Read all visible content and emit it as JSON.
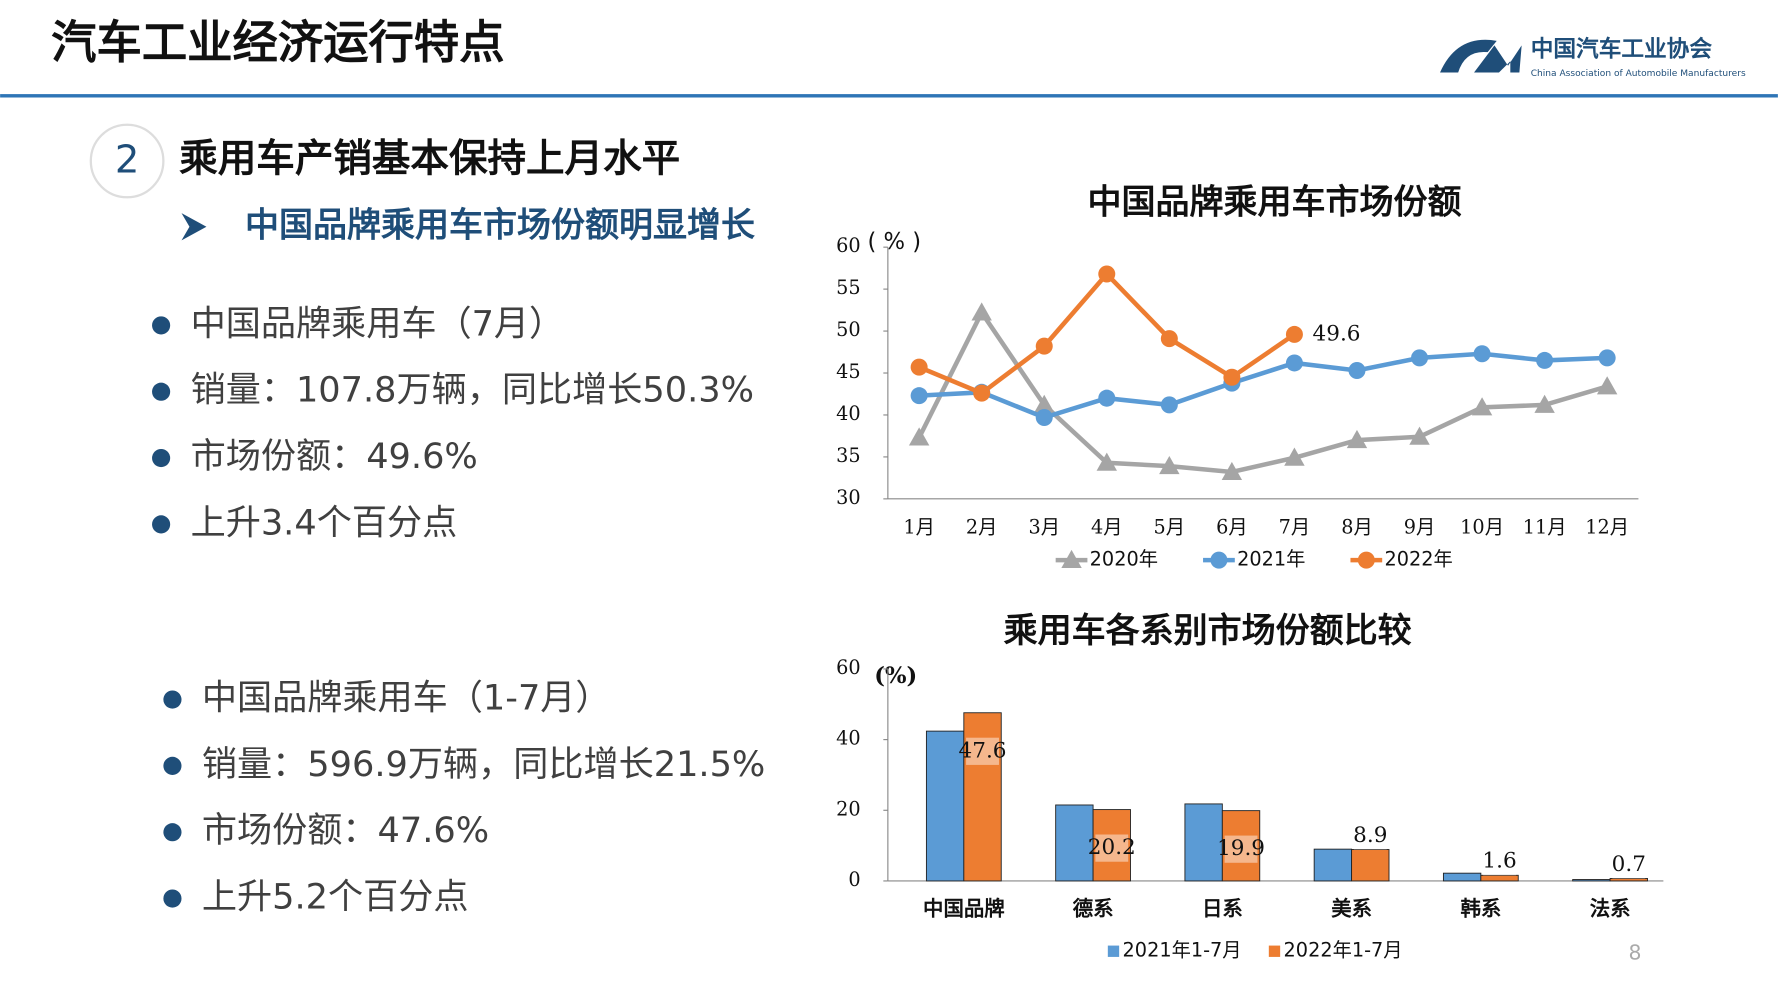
{
  "header": {
    "title": "汽车工业经济运行特点"
  },
  "logo": {
    "name": "中国汽车工业协会",
    "english": "China Association of Automobile Manufacturers"
  },
  "section": {
    "number": "2",
    "title": "乘用车产销基本保持上月水平",
    "subtitle": "中国品牌乘用车市场份额明显增长"
  },
  "bullets1": [
    "中国品牌乘用车（7月）",
    "销量：107.8万辆，同比增长50.3%",
    "市场份额：49.6%",
    "上升3.4个百分点"
  ],
  "bullets2": [
    "中国品牌乘用车（1-7月）",
    "销量：596.9万辆，同比增长21.5%",
    "市场份额：47.6%",
    "上升5.2个百分点"
  ],
  "page_number": "8",
  "chart_data": [
    {
      "type": "line",
      "title": "中国品牌乘用车市场份额",
      "y_label": "( % )",
      "categories": [
        "1月",
        "2月",
        "3月",
        "4月",
        "5月",
        "6月",
        "7月",
        "8月",
        "9月",
        "10月",
        "11月",
        "12月"
      ],
      "series": [
        {
          "name": "2020年",
          "color": "#a5a5a5",
          "marker": "triangle",
          "values": [
            37.3,
            52.2,
            41.2,
            34.3,
            33.9,
            33.2,
            34.9,
            37.0,
            37.4,
            40.9,
            41.2,
            43.4
          ]
        },
        {
          "name": "2021年",
          "color": "#5b9bd5",
          "marker": "circle",
          "values": [
            42.3,
            42.7,
            39.7,
            42.0,
            41.2,
            43.8,
            46.2,
            45.3,
            46.8,
            47.3,
            46.5,
            46.8
          ]
        },
        {
          "name": "2022年",
          "color": "#ed7d31",
          "marker": "circle",
          "values": [
            45.7,
            42.6,
            48.2,
            56.8,
            49.1,
            44.5,
            49.6,
            null,
            null,
            null,
            null,
            null
          ],
          "value_labels": [
            null,
            null,
            null,
            null,
            null,
            null,
            "49.6",
            null,
            null,
            null,
            null,
            null
          ]
        }
      ],
      "ylim": [
        30,
        60
      ],
      "yticks": [
        30,
        35,
        40,
        45,
        50,
        55,
        60
      ],
      "grid": false
    },
    {
      "type": "bar",
      "title": "乘用车各系别市场份额比较",
      "y_label": "(%)",
      "categories": [
        "中国品牌",
        "德系",
        "日系",
        "美系",
        "韩系",
        "法系"
      ],
      "series": [
        {
          "name": "2021年1-7月",
          "color": "#5b9bd5",
          "values": [
            42.4,
            21.5,
            21.8,
            9.0,
            2.2,
            0.4
          ]
        },
        {
          "name": "2022年1-7月",
          "color": "#ed7d31",
          "values": [
            47.6,
            20.2,
            19.9,
            8.9,
            1.6,
            0.7
          ],
          "show_labels": true
        }
      ],
      "ylim": [
        0,
        60
      ],
      "yticks": [
        0,
        20,
        40,
        60
      ],
      "grid": false
    }
  ]
}
